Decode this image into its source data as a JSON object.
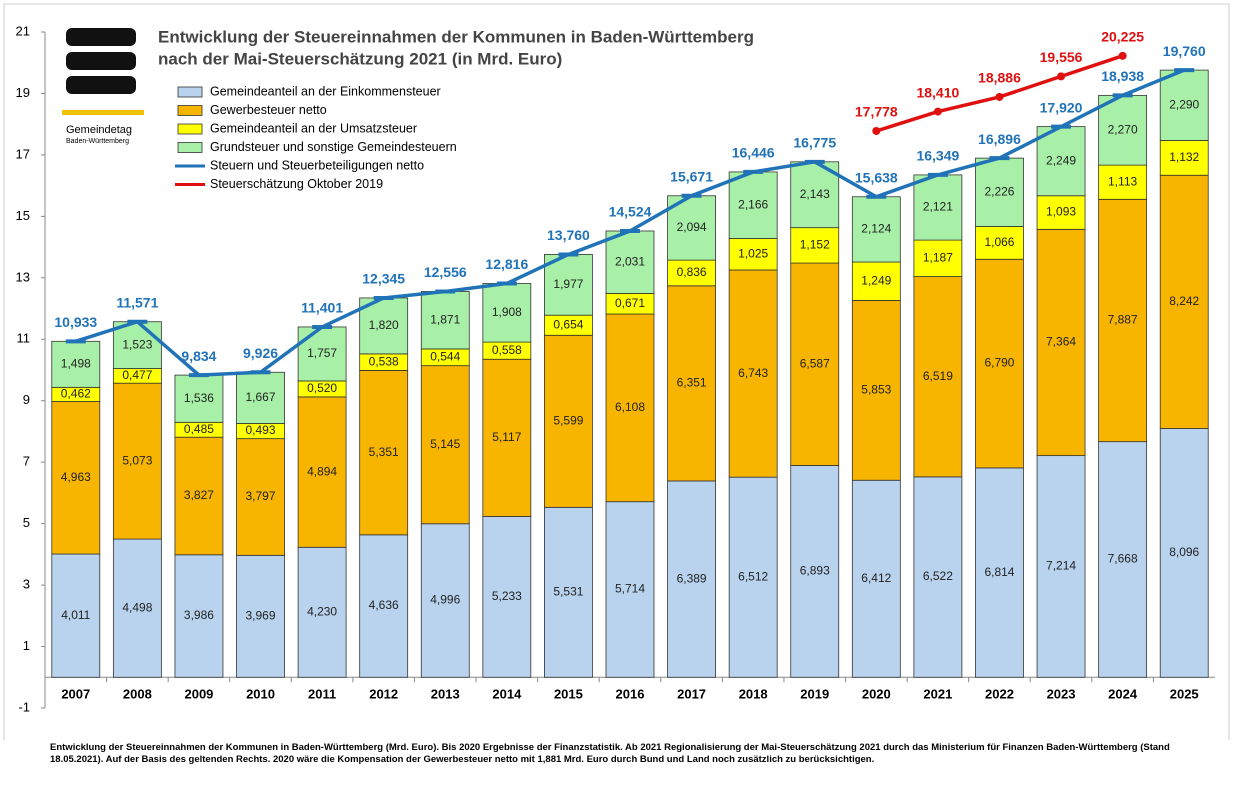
{
  "chart_data": {
    "type": "bar",
    "stacked": true,
    "title": [
      "Entwicklung der Steuereinnahmen der Kommunen in Baden-Württemberg",
      "nach der Mai-Steuerschätzung 2021 (in Mrd. Euro)"
    ],
    "logo": [
      "Gemeindetag",
      "Baden-Württemberg"
    ],
    "footnote": "Entwicklung der Steuereinnahmen der Kommunen in Baden-Württemberg (Mrd. Euro). Bis 2020 Ergebnisse der Finanzstatistik. Ab 2021 Regionalisierung der Mai-Steuerschätzung 2021 durch das Ministerium für Finanzen Baden-Württemberg (Stand 18.05.2021). Auf der Basis des geltenden Rechts. 2020 wäre die Kompensation der Gewerbesteuer netto mit 1,881 Mrd. Euro durch Bund und Land noch zusätzlich zu berücksichtigen.",
    "categories": [
      "2007",
      "2008",
      "2009",
      "2010",
      "2011",
      "2012",
      "2013",
      "2014",
      "2015",
      "2016",
      "2017",
      "2018",
      "2019",
      "2020",
      "2021",
      "2022",
      "2023",
      "2024",
      "2025"
    ],
    "ylim": [
      -1,
      21
    ],
    "yticks": [
      -1,
      1,
      3,
      5,
      7,
      9,
      11,
      13,
      15,
      17,
      19,
      21
    ],
    "series": [
      {
        "name": "Gemeindeanteil an der Einkommensteuer",
        "color": "#b9d3ef",
        "values": [
          4.011,
          4.498,
          3.986,
          3.969,
          4.23,
          4.636,
          4.996,
          5.233,
          5.531,
          5.714,
          6.389,
          6.512,
          6.893,
          6.412,
          6.522,
          6.814,
          7.214,
          7.668,
          8.096
        ],
        "value_labels": [
          "4,011",
          "4,498",
          "3,986",
          "3,969",
          "4,230",
          "4,636",
          "4,996",
          "5,233",
          "5,531",
          "5,714",
          "6,389",
          "6,512",
          "6,893",
          "6,412",
          "6,522",
          "6,814",
          "7,214",
          "7,668",
          "8,096"
        ]
      },
      {
        "name": "Gewerbesteuer netto",
        "color": "#f7b500",
        "values": [
          4.963,
          5.073,
          3.827,
          3.797,
          4.894,
          5.351,
          5.145,
          5.117,
          5.599,
          6.108,
          6.351,
          6.743,
          6.587,
          5.853,
          6.519,
          6.79,
          7.364,
          7.887,
          8.242
        ],
        "value_labels": [
          "4,963",
          "5,073",
          "3,827",
          "3,797",
          "4,894",
          "5,351",
          "5,145",
          "5,117",
          "5,599",
          "6,108",
          "6,351",
          "6,743",
          "6,587",
          "5,853",
          "6,519",
          "6,790",
          "7,364",
          "7,887",
          "8,242"
        ]
      },
      {
        "name": "Gemeindeanteil an der Umsatzsteuer",
        "color": "#ffff00",
        "values": [
          0.462,
          0.477,
          0.485,
          0.493,
          0.52,
          0.538,
          0.544,
          0.558,
          0.654,
          0.671,
          0.836,
          1.025,
          1.152,
          1.249,
          1.187,
          1.066,
          1.093,
          1.113,
          1.132
        ],
        "value_labels": [
          "0,462",
          "0,477",
          "0,485",
          "0,493",
          "0,520",
          "0,538",
          "0,544",
          "0,558",
          "0,654",
          "0,671",
          "0,836",
          "1,025",
          "1,152",
          "1,249",
          "1,187",
          "1,066",
          "1,093",
          "1,113",
          "1,132"
        ]
      },
      {
        "name": "Grundsteuer und sonstige Gemeindesteuern",
        "color": "#a8f0a8",
        "values": [
          1.498,
          1.523,
          1.536,
          1.667,
          1.757,
          1.82,
          1.871,
          1.908,
          1.977,
          2.031,
          2.094,
          2.166,
          2.143,
          2.124,
          2.121,
          2.226,
          2.249,
          2.27,
          2.29
        ],
        "value_labels": [
          "1,498",
          "1,523",
          "1,536",
          "1,667",
          "1,757",
          "1,820",
          "1,871",
          "1,908",
          "1,977",
          "2,031",
          "2,094",
          "2,166",
          "2,143",
          "2,124",
          "2,121",
          "2,226",
          "2,249",
          "2,270",
          "2,290"
        ]
      },
      {
        "name": "Steuern und Steuerbeteiligungen netto",
        "type": "line",
        "color": "#2173b8",
        "values": [
          10.933,
          11.571,
          9.834,
          9.926,
          11.401,
          12.345,
          12.556,
          12.816,
          13.76,
          14.524,
          15.671,
          16.446,
          16.775,
          15.638,
          16.349,
          16.896,
          17.92,
          18.938,
          19.76
        ],
        "value_labels": [
          "10,933",
          "11,571",
          "9,834",
          "9,926",
          "11,401",
          "12,345",
          "12,556",
          "12,816",
          "13,760",
          "14,524",
          "15,671",
          "16,446",
          "16,775",
          "15,638",
          "16,349",
          "16,896",
          "17,920",
          "18,938",
          "19,760"
        ]
      },
      {
        "name": "Steuerschätzung Oktober 2019",
        "type": "line",
        "color": "#e01010",
        "values": [
          null,
          null,
          null,
          null,
          null,
          null,
          null,
          null,
          null,
          null,
          null,
          null,
          null,
          17.778,
          18.41,
          18.886,
          19.556,
          20.225,
          null
        ],
        "value_labels": [
          null,
          null,
          null,
          null,
          null,
          null,
          null,
          null,
          null,
          null,
          null,
          null,
          null,
          "17,778",
          "18,410",
          "18,886",
          "19,556",
          "20,225",
          null
        ]
      }
    ]
  }
}
